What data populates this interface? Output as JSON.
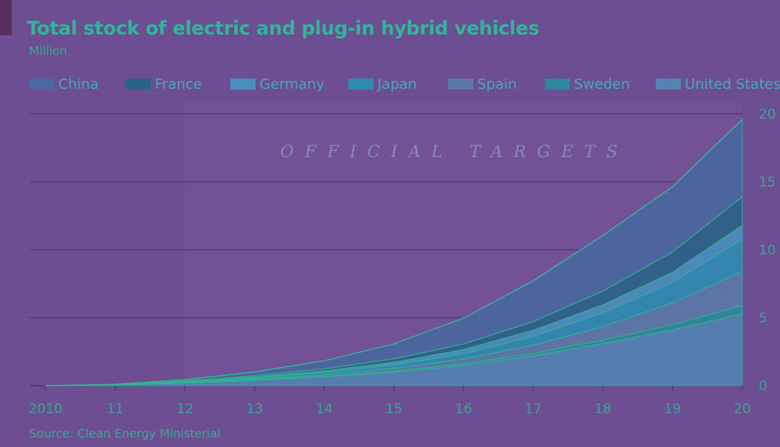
{
  "title": "Total stock of electric and plug-in hybrid vehicles",
  "unit": "Million",
  "source": "Source: Clean Energy Ministerial",
  "annotation": "OFFICIAL TARGETS",
  "colors": {
    "background": "#6e4e93",
    "title": "#2fb598",
    "axis_text": "#3aa890",
    "gridline": "#4c3e7c"
  },
  "legend": [
    {
      "name": "China",
      "color": "#4a68a0"
    },
    {
      "name": "France",
      "color": "#2a6288"
    },
    {
      "name": "Germany",
      "color": "#4a8ec0"
    },
    {
      "name": "Japan",
      "color": "#2f8bb4"
    },
    {
      "name": "Spain",
      "color": "#5a78a8"
    },
    {
      "name": "Sweden",
      "color": "#2c8a9c"
    },
    {
      "name": "United States",
      "color": "#5482b2"
    }
  ],
  "chart_data": {
    "type": "area",
    "stacked": true,
    "title": "Total stock of electric and plug-in hybrid vehicles",
    "subtitle": "Million",
    "x": [
      2010,
      2011,
      2012,
      2013,
      2014,
      2015,
      2016,
      2017,
      2018,
      2019,
      2020
    ],
    "x_tick_labels": [
      "2010",
      "11",
      "12",
      "13",
      "14",
      "15",
      "16",
      "17",
      "18",
      "19",
      "20"
    ],
    "y_ticks": [
      0,
      5,
      10,
      15,
      20
    ],
    "ylim": [
      0,
      20
    ],
    "y_axis_side": "right",
    "grid": true,
    "legend_position": "top",
    "shaded_region_from": 2012,
    "annotation": "OFFICIAL TARGETS",
    "series": [
      {
        "name": "United States",
        "color": "#5482b2",
        "values": [
          0,
          0.05,
          0.2,
          0.4,
          0.65,
          1.0,
          1.5,
          2.2,
          3.1,
          4.1,
          5.3
        ]
      },
      {
        "name": "Sweden",
        "color": "#2c8a9c",
        "values": [
          0,
          0.005,
          0.01,
          0.03,
          0.05,
          0.08,
          0.12,
          0.18,
          0.26,
          0.4,
          0.6
        ]
      },
      {
        "name": "Spain",
        "color": "#5a78a8",
        "values": [
          0,
          0.01,
          0.03,
          0.07,
          0.12,
          0.2,
          0.35,
          0.6,
          1.0,
          1.6,
          2.5
        ]
      },
      {
        "name": "Japan",
        "color": "#2f8bb4",
        "values": [
          0,
          0.01,
          0.04,
          0.08,
          0.15,
          0.25,
          0.4,
          0.65,
          1.0,
          1.5,
          2.4
        ]
      },
      {
        "name": "Germany",
        "color": "#4a8ec0",
        "values": [
          0,
          0.01,
          0.03,
          0.06,
          0.12,
          0.2,
          0.3,
          0.45,
          0.6,
          0.75,
          1.0
        ]
      },
      {
        "name": "France",
        "color": "#2a6288",
        "values": [
          0,
          0.01,
          0.04,
          0.08,
          0.15,
          0.25,
          0.4,
          0.65,
          1.0,
          1.5,
          2.1
        ]
      },
      {
        "name": "China",
        "color": "#4a68a0",
        "values": [
          0,
          0.01,
          0.1,
          0.3,
          0.6,
          1.1,
          1.9,
          3.0,
          4.1,
          4.8,
          5.7
        ]
      }
    ]
  }
}
